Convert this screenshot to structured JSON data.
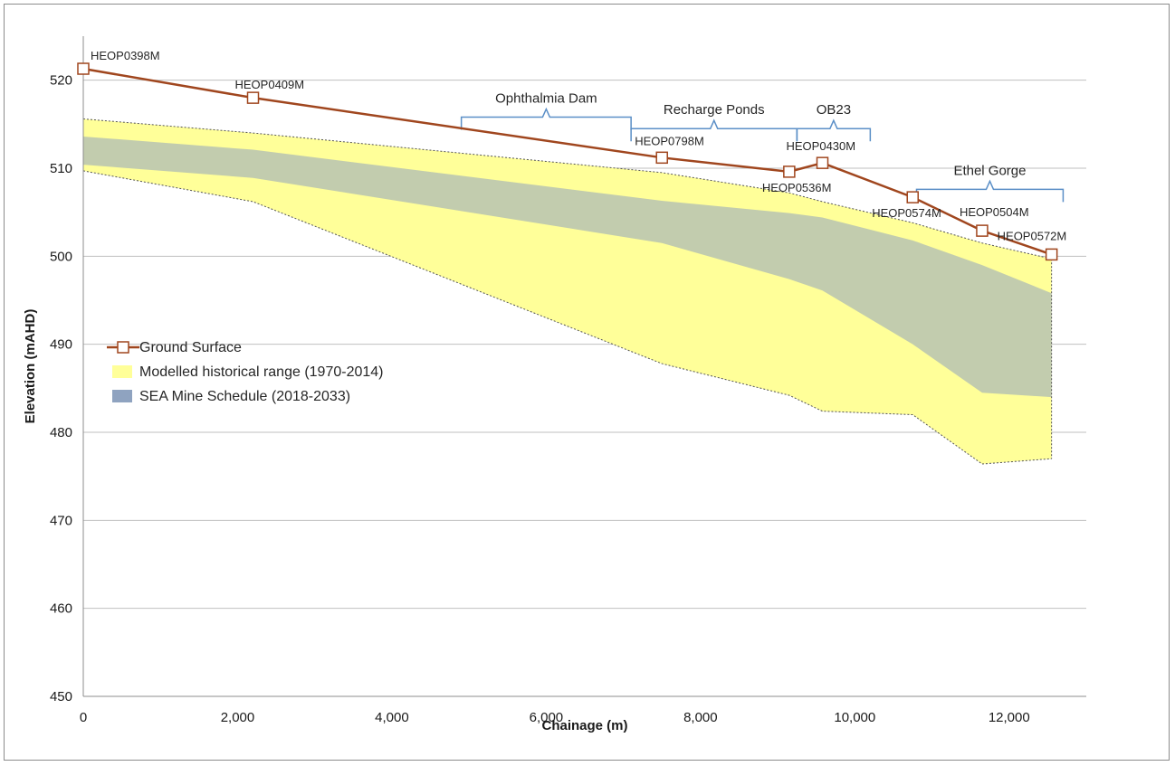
{
  "chart_data": {
    "type": "line",
    "title": "",
    "xlabel": "Chainage (m)",
    "ylabel": "Elevation (mAHD)",
    "xlim": [
      0,
      13000
    ],
    "ylim": [
      450,
      525
    ],
    "x_ticks": [
      0,
      2000,
      4000,
      6000,
      8000,
      10000,
      12000
    ],
    "x_tick_labels": [
      "0",
      "2,000",
      "4,000",
      "6,000",
      "8,000",
      "10,000",
      "12,000"
    ],
    "y_ticks": [
      450,
      460,
      470,
      480,
      490,
      500,
      510,
      520
    ],
    "y_tick_labels": [
      "450",
      "460",
      "470",
      "480",
      "490",
      "500",
      "510",
      "520"
    ],
    "grid": "horizontal",
    "series": [
      {
        "name": "Ground Surface",
        "kind": "line-markers",
        "color": "#a0461e",
        "points": [
          {
            "x": 0,
            "y": 521.3,
            "label": "HEOP0398M"
          },
          {
            "x": 2200,
            "y": 518.0,
            "label": "HEOP0409M"
          },
          {
            "x": 7500,
            "y": 511.2,
            "label": "HEOP0798M"
          },
          {
            "x": 9150,
            "y": 509.6,
            "label": "HEOP0536M"
          },
          {
            "x": 9580,
            "y": 510.6,
            "label": "HEOP0430M"
          },
          {
            "x": 10750,
            "y": 506.7,
            "label": "HEOP0574M"
          },
          {
            "x": 11650,
            "y": 502.9,
            "label": "HEOP0504M"
          },
          {
            "x": 12550,
            "y": 500.2,
            "label": "HEOP0572M"
          }
        ]
      },
      {
        "name": "Modelled historical range (1970-2014)",
        "kind": "band",
        "color": "#ffff99",
        "x": [
          0,
          2200,
          7500,
          9150,
          9580,
          10750,
          11650,
          12550
        ],
        "upper": [
          515.6,
          514.0,
          509.5,
          507.2,
          506.2,
          503.8,
          501.5,
          499.7
        ],
        "lower": [
          509.7,
          506.2,
          487.8,
          484.2,
          482.4,
          482.0,
          476.4,
          477.0
        ]
      },
      {
        "name": "SEA Mine Schedule (2018-2033)",
        "kind": "band",
        "color": "#8fa3c0",
        "x": [
          0,
          2200,
          7500,
          9150,
          9580,
          10750,
          11650,
          12550
        ],
        "upper": [
          513.6,
          512.1,
          506.3,
          504.9,
          504.4,
          501.8,
          499.0,
          495.8
        ],
        "lower": [
          510.4,
          508.9,
          501.5,
          497.4,
          496.1,
          490.0,
          484.5,
          484.0
        ]
      }
    ],
    "annotations": [
      {
        "text": "Ophthalmia Dam",
        "x_start": 4900,
        "x_end": 7100,
        "y": 515.8
      },
      {
        "text": "Recharge Ponds",
        "x_start": 7100,
        "x_end": 9250,
        "y": 514.5
      },
      {
        "text": "OB23",
        "x_start": 9250,
        "x_end": 10200,
        "y": 514.5
      },
      {
        "text": "Ethel Gorge",
        "x_start": 10800,
        "x_end": 12700,
        "y": 507.6
      }
    ],
    "legend": {
      "position": "left-middle",
      "entries": [
        "Ground Surface",
        "Modelled historical range (1970-2014)",
        "SEA Mine Schedule (2018-2033)"
      ]
    }
  }
}
